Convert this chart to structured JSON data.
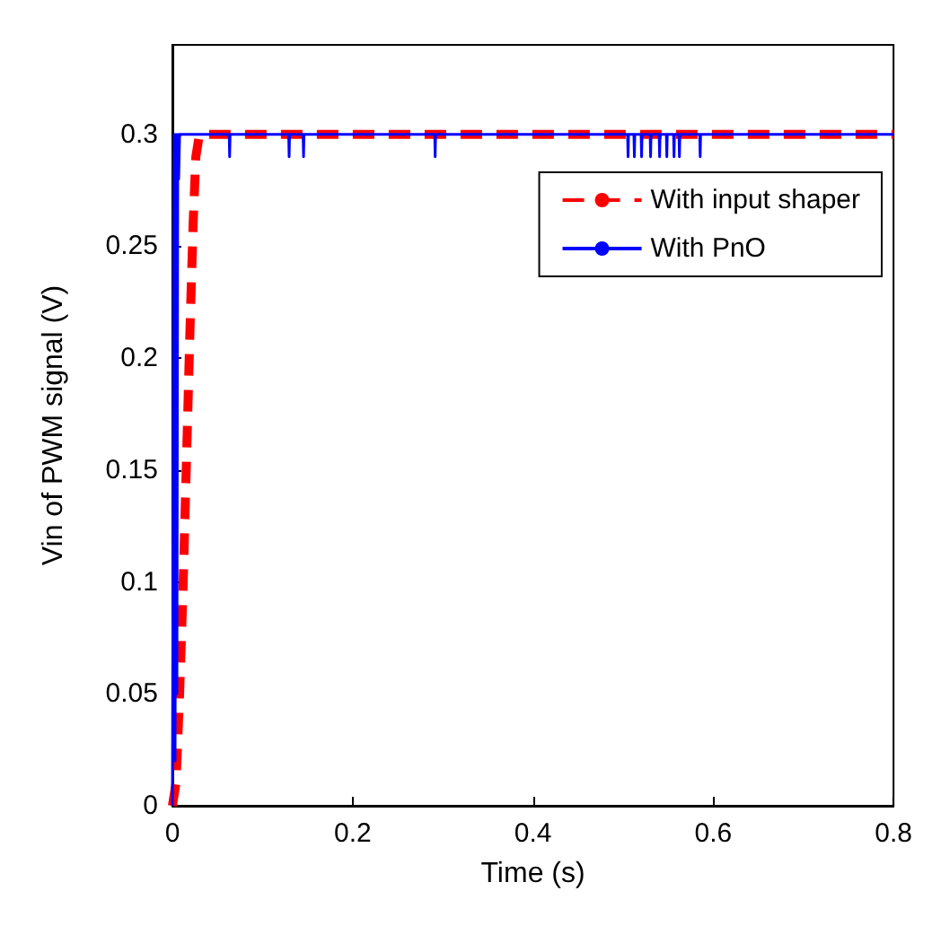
{
  "chart_data": {
    "type": "line",
    "xlabel": "Time (s)",
    "ylabel": "Vin of PWM signal (V)",
    "xlim": [
      0,
      0.8
    ],
    "xticks": [
      0,
      0.2,
      0.4,
      0.6,
      0.8
    ],
    "ylim": [
      0,
      0.34
    ],
    "yticks": [
      0,
      0.05,
      0.1,
      0.15,
      0.2,
      0.25,
      0.3
    ],
    "grid": false,
    "legend": "top right",
    "marker": "none",
    "series": [
      {
        "name": "With input shaper",
        "color": "#ff0000",
        "line_style": "dashed",
        "x": [
          0,
          0.004,
          0.008,
          0.012,
          0.016,
          0.02,
          0.023,
          0.026,
          0.03,
          0.8
        ],
        "values": [
          0,
          0.01,
          0.05,
          0.1,
          0.16,
          0.22,
          0.26,
          0.29,
          0.3,
          0.3
        ]
      },
      {
        "name": "With PnO",
        "color": "#0000ff",
        "line_style": "solid",
        "x": [
          0,
          0.002,
          0.003,
          0.004,
          0.005,
          0.006,
          0.007,
          0.008,
          0.063,
          0.0635,
          0.064,
          0.129,
          0.1295,
          0.13,
          0.145,
          0.1455,
          0.146,
          0.291,
          0.2915,
          0.292,
          0.505,
          0.5055,
          0.506,
          0.512,
          0.5125,
          0.513,
          0.52,
          0.5205,
          0.521,
          0.53,
          0.5305,
          0.531,
          0.54,
          0.5405,
          0.541,
          0.548,
          0.5485,
          0.549,
          0.556,
          0.5565,
          0.557,
          0.562,
          0.5625,
          0.563,
          0.585,
          0.5855,
          0.586,
          0.8
        ],
        "values": [
          0,
          0.3,
          0.02,
          0.3,
          0.05,
          0.3,
          0.28,
          0.3,
          0.3,
          0.29,
          0.3,
          0.3,
          0.29,
          0.3,
          0.3,
          0.29,
          0.3,
          0.3,
          0.29,
          0.3,
          0.3,
          0.29,
          0.3,
          0.3,
          0.29,
          0.3,
          0.3,
          0.29,
          0.3,
          0.3,
          0.29,
          0.3,
          0.3,
          0.29,
          0.3,
          0.3,
          0.29,
          0.3,
          0.3,
          0.29,
          0.3,
          0.3,
          0.29,
          0.3,
          0.3,
          0.29,
          0.3,
          0.3
        ]
      }
    ]
  }
}
